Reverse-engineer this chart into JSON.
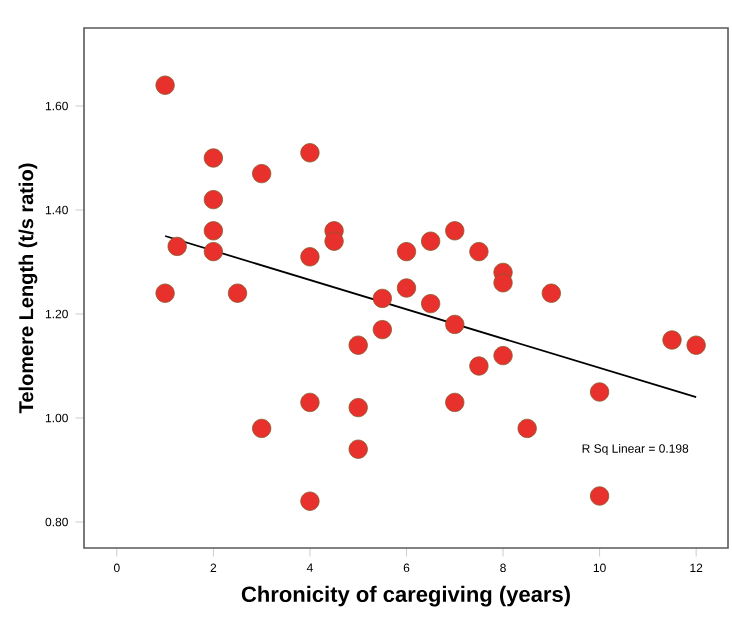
{
  "chart_data": {
    "type": "scatter",
    "xlabel": "Chronicity of caregiving (years)",
    "ylabel": "Telomere Length (t/s ratio)",
    "xlim": [
      -0.68,
      12.66
    ],
    "ylim": [
      0.75,
      1.75
    ],
    "xticks": [
      0,
      2,
      4,
      6,
      8,
      10,
      12
    ],
    "yticks": [
      {
        "value": 0.8,
        "label": "0.80"
      },
      {
        "value": 1.0,
        "label": "1.00"
      },
      {
        "value": 1.2,
        "label": "1.20"
      },
      {
        "value": 1.4,
        "label": "1.40"
      },
      {
        "value": 1.6,
        "label": "1.60"
      }
    ],
    "grid": false,
    "marker": "circle",
    "annotations": [
      "R Sq Linear = 0.198"
    ],
    "series": [
      {
        "color": "#e8302c",
        "x": [
          1,
          1,
          1.25,
          2,
          2,
          2,
          2,
          2.5,
          3,
          4,
          4,
          4.5,
          4.5,
          5.5,
          6,
          6,
          6.5,
          6.5,
          7,
          7.5,
          8,
          8,
          9,
          7,
          5.5,
          5,
          7.5,
          8,
          11.5,
          12,
          10,
          4,
          5,
          7,
          3,
          8.5,
          5,
          4,
          10
        ],
        "values": [
          1.64,
          1.24,
          1.33,
          1.5,
          1.42,
          1.36,
          1.32,
          1.24,
          1.47,
          1.51,
          1.31,
          1.36,
          1.34,
          1.23,
          1.32,
          1.25,
          1.34,
          1.22,
          1.36,
          1.32,
          1.28,
          1.26,
          1.24,
          1.18,
          1.17,
          1.14,
          1.1,
          1.12,
          1.15,
          1.14,
          1.05,
          1.03,
          1.02,
          1.03,
          0.98,
          0.98,
          0.94,
          0.84,
          0.85
        ]
      },
      {
        "type": "line",
        "color": "#000000",
        "marker": "none",
        "x": [
          1,
          12
        ],
        "values": [
          1.35,
          1.04
        ]
      }
    ]
  }
}
